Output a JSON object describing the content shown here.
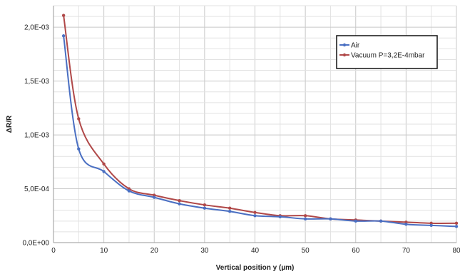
{
  "chart_data": {
    "type": "line",
    "xlabel": "Vertical position y (µm)",
    "ylabel": "ΔR/R",
    "xlim": [
      0,
      80
    ],
    "ylim": [
      0,
      0.0022
    ],
    "x_ticks": [
      0,
      10,
      20,
      30,
      40,
      50,
      60,
      70,
      80
    ],
    "x_tick_labels": [
      "0",
      "10",
      "20",
      "30",
      "40",
      "50",
      "60",
      "70",
      "80"
    ],
    "y_ticks": [
      0,
      0.0005,
      0.001,
      0.0015,
      0.002
    ],
    "y_tick_labels": [
      "0,0E+00",
      "5,0E-04",
      "1,0E-03",
      "1,5E-03",
      "2,0E-03"
    ],
    "grid": true,
    "legend_position": "top-right",
    "series": [
      {
        "name": "Air",
        "color": "#4a6fc2",
        "x": [
          2,
          5,
          10,
          15,
          20,
          25,
          30,
          35,
          40,
          45,
          50,
          55,
          60,
          65,
          70,
          75,
          80
        ],
        "y": [
          0.00192,
          0.00087,
          0.00066,
          0.00048,
          0.00042,
          0.00036,
          0.00032,
          0.00029,
          0.00025,
          0.00024,
          0.00022,
          0.00022,
          0.0002,
          0.0002,
          0.00017,
          0.00016,
          0.00015
        ]
      },
      {
        "name": "Vacuum P=3,2E-4mbar",
        "color": "#b04848",
        "x": [
          2,
          5,
          10,
          15,
          20,
          25,
          30,
          35,
          40,
          45,
          50,
          55,
          60,
          65,
          70,
          75,
          80
        ],
        "y": [
          0.00211,
          0.00115,
          0.00073,
          0.0005,
          0.00044,
          0.00039,
          0.00035,
          0.00032,
          0.00028,
          0.00025,
          0.00025,
          0.00022,
          0.00021,
          0.0002,
          0.00019,
          0.00018,
          0.00018
        ]
      }
    ]
  }
}
